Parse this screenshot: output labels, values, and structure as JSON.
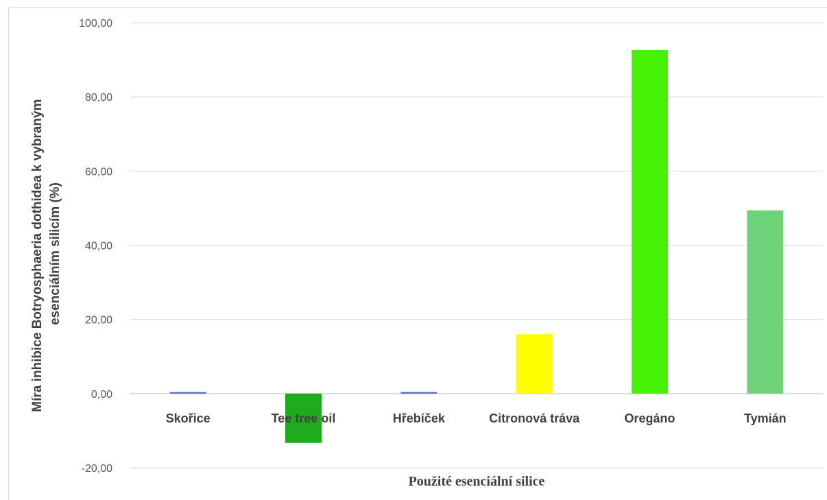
{
  "figure_label": "",
  "chart_data": {
    "type": "bar",
    "categories": [
      "Skořice",
      "Tee tree oil",
      "Hřebíček",
      "Citronová tráva",
      "Oregáno",
      "Tymián"
    ],
    "values": [
      0.4,
      -13.3,
      0.4,
      16.0,
      92.6,
      49.4
    ],
    "colors": [
      "#4472c4",
      "#1eab1e",
      "#4472c4",
      "#ffff00",
      "#47f205",
      "#6dd278"
    ],
    "ylim": [
      -20,
      100
    ],
    "yticks": [
      "-20,00",
      "0,00",
      "20,00",
      "40,00",
      "60,00",
      "80,00",
      "100,00"
    ],
    "ytick_values": [
      -20,
      0,
      20,
      40,
      60,
      80,
      100
    ],
    "ylabel_line1": "Míra inhibice  Botryosphaeria dothidea  k vybraným",
    "ylabel_line2": "esenciálním silicím (%)",
    "xlabel": "Použité esenciální silice",
    "grid": true,
    "legend": "none"
  }
}
